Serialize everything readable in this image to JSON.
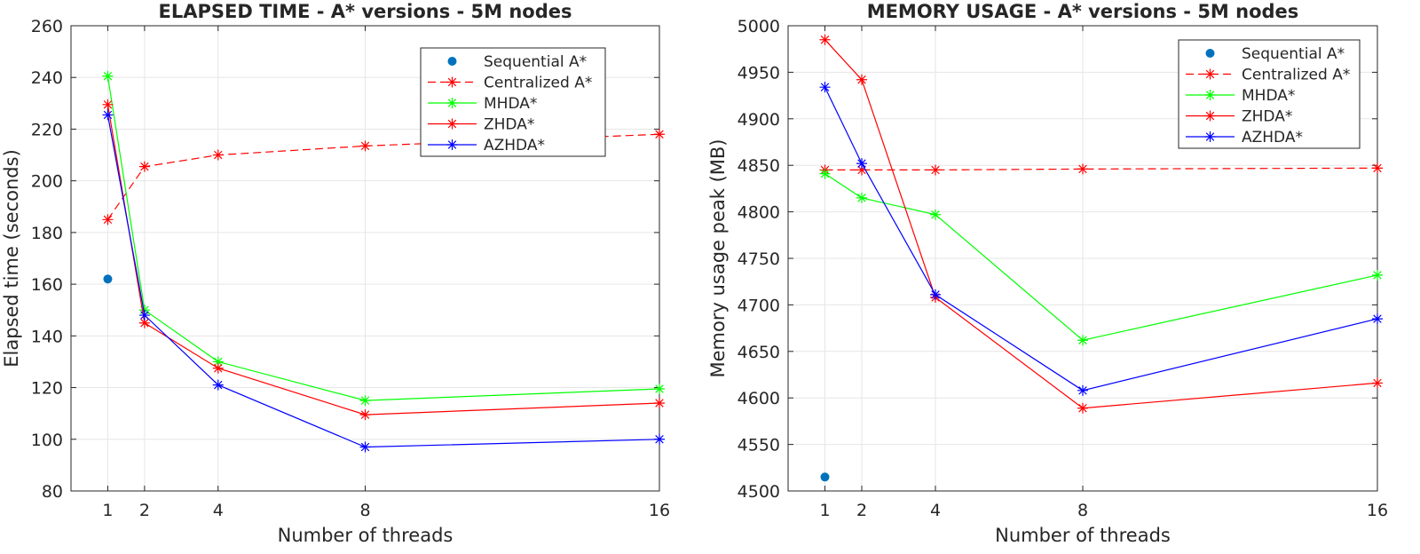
{
  "chart_data": [
    {
      "type": "line",
      "title": "ELAPSED TIME - A* versions - 5M nodes",
      "xlabel": "Number of threads",
      "ylabel": "Elapsed time (seconds)",
      "xlim": [
        0,
        16
      ],
      "ylim": [
        80,
        260
      ],
      "xticks": [
        1,
        2,
        4,
        8,
        16
      ],
      "yticks": [
        80,
        100,
        120,
        140,
        160,
        180,
        200,
        220,
        240,
        260
      ],
      "grid": true,
      "legend_position": "top-right",
      "series": [
        {
          "name": "Sequential A*",
          "color": "#0072bd",
          "style": "marker",
          "x": [
            1
          ],
          "values": [
            162
          ]
        },
        {
          "name": "Centralized A*",
          "color": "#ff0000",
          "style": "dashed",
          "x": [
            1,
            2,
            4,
            8,
            16
          ],
          "values": [
            185,
            205.5,
            210,
            213.5,
            218
          ]
        },
        {
          "name": "MHDA*",
          "color": "#00ff00",
          "style": "solid",
          "x": [
            1,
            2,
            4,
            8,
            16
          ],
          "values": [
            240.5,
            150,
            130,
            115,
            119.5
          ]
        },
        {
          "name": "ZHDA*",
          "color": "#ff0000",
          "style": "solid",
          "x": [
            1,
            2,
            4,
            8,
            16
          ],
          "values": [
            229.5,
            145,
            127.5,
            109.5,
            114
          ]
        },
        {
          "name": "AZHDA*",
          "color": "#0000ff",
          "style": "solid",
          "x": [
            1,
            2,
            4,
            8,
            16
          ],
          "values": [
            225.5,
            148,
            121,
            97,
            100
          ]
        }
      ]
    },
    {
      "type": "line",
      "title": "MEMORY USAGE - A* versions - 5M nodes",
      "xlabel": "Number of threads",
      "ylabel": "Memory usage peak (MB)",
      "xlim": [
        0,
        16
      ],
      "ylim": [
        4500,
        5000
      ],
      "xticks": [
        1,
        2,
        4,
        8,
        16
      ],
      "yticks": [
        4500,
        4550,
        4600,
        4650,
        4700,
        4750,
        4800,
        4850,
        4900,
        4950,
        5000
      ],
      "grid": true,
      "legend_position": "top-right",
      "series": [
        {
          "name": "Sequential A*",
          "color": "#0072bd",
          "style": "marker",
          "x": [
            1
          ],
          "values": [
            4515
          ]
        },
        {
          "name": "Centralized A*",
          "color": "#ff0000",
          "style": "dashed",
          "x": [
            1,
            2,
            4,
            8,
            16
          ],
          "values": [
            4845,
            4845,
            4845,
            4846,
            4847
          ]
        },
        {
          "name": "MHDA*",
          "color": "#00ff00",
          "style": "solid",
          "x": [
            1,
            2,
            4,
            8,
            16
          ],
          "values": [
            4841,
            4815,
            4797,
            4662,
            4732
          ]
        },
        {
          "name": "ZHDA*",
          "color": "#ff0000",
          "style": "solid",
          "x": [
            1,
            2,
            4,
            8,
            16
          ],
          "values": [
            4985,
            4942,
            4708,
            4589,
            4616
          ]
        },
        {
          "name": "AZHDA*",
          "color": "#0000ff",
          "style": "solid",
          "x": [
            1,
            2,
            4,
            8,
            16
          ],
          "values": [
            4934,
            4852,
            4711,
            4608,
            4685
          ]
        }
      ]
    }
  ]
}
